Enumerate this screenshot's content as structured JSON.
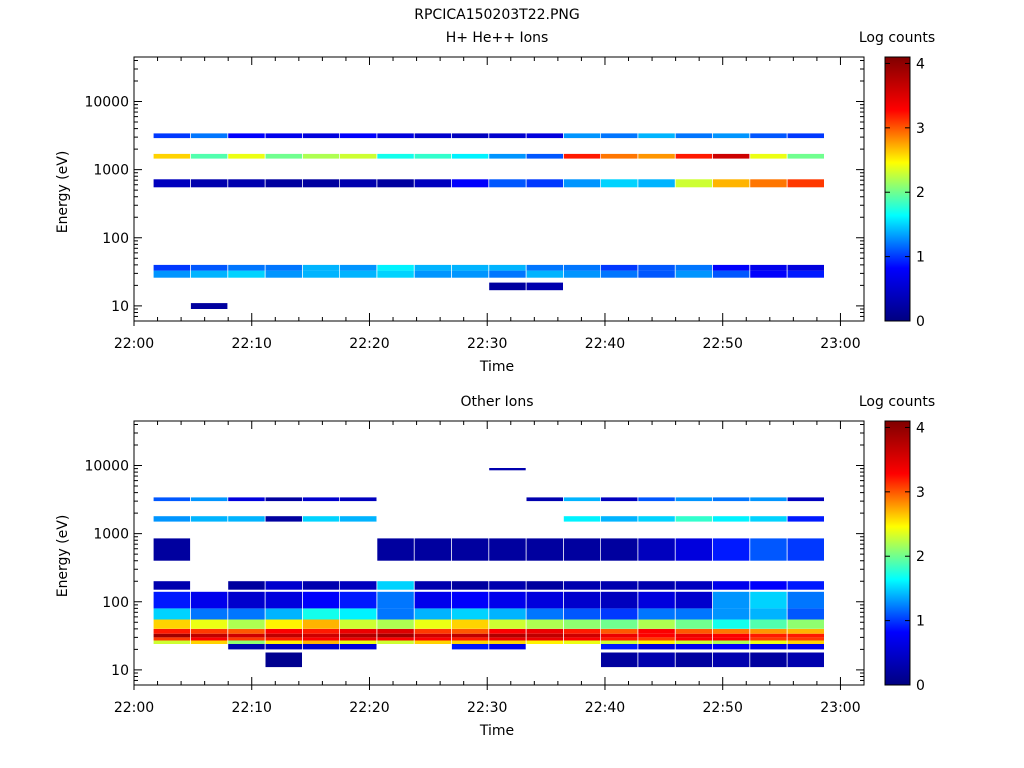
{
  "page_title": "RPCICA150203T22.PNG",
  "chart_data": [
    {
      "type": "heatmap",
      "title": "H+ He++ Ions",
      "xlabel": "Time",
      "ylabel": "Energy (eV)",
      "x_ticks": [
        "22:00",
        "22:10",
        "22:20",
        "22:30",
        "22:40",
        "22:50",
        "23:00"
      ],
      "x_range": [
        "22:00",
        "23:02"
      ],
      "y_scale": "log",
      "y_ticks": [
        "10",
        "100",
        "1000",
        "10000"
      ],
      "y_range": [
        6,
        45000
      ],
      "colorbar": {
        "label": "Log counts",
        "ticks": [
          "0",
          "1",
          "2",
          "3",
          "4"
        ],
        "range": [
          0,
          4.1
        ]
      },
      "colormap": [
        "#000080",
        "#0000ff",
        "#00ffff",
        "#ffff00",
        "#ff0000",
        "#800000"
      ],
      "time_bins_start": [
        "22:01:40",
        "22:04:50",
        "22:08:00",
        "22:11:10",
        "22:14:20",
        "22:17:30",
        "22:20:40",
        "22:23:50",
        "22:27:00",
        "22:30:10",
        "22:33:20",
        "22:36:30",
        "22:39:40",
        "22:42:50",
        "22:46:00",
        "22:49:10",
        "22:52:20",
        "22:55:30"
      ],
      "time_bin_width_min": 3.1,
      "rows": [
        {
          "emin": 26,
          "emax": 33,
          "values": [
            1.3,
            1.4,
            1.5,
            1.3,
            1.4,
            1.4,
            1.5,
            1.3,
            1.3,
            1.2,
            1.4,
            1.3,
            1.2,
            1.1,
            1.3,
            1.1,
            0.8,
            0.9
          ]
        },
        {
          "emin": 33,
          "emax": 40,
          "values": [
            1.0,
            1.1,
            1.2,
            1.2,
            1.4,
            1.3,
            1.6,
            1.4,
            1.4,
            1.4,
            1.2,
            1.2,
            1.0,
            1.1,
            1.2,
            0.8,
            0.7,
            0.6
          ]
        },
        {
          "emin": 1450,
          "emax": 1700,
          "values": [
            2.6,
            1.9,
            2.4,
            2.0,
            2.2,
            2.3,
            1.7,
            1.8,
            1.6,
            1.3,
            1.1,
            3.2,
            2.9,
            2.8,
            3.2,
            3.6,
            2.4,
            2.0
          ]
        },
        {
          "emin": 550,
          "emax": 720,
          "values": [
            0.4,
            0.3,
            0.3,
            0.2,
            0.2,
            0.3,
            0.2,
            0.4,
            0.8,
            1.1,
            1.0,
            1.3,
            1.5,
            1.4,
            2.3,
            2.7,
            2.9,
            3.1
          ]
        },
        {
          "emin": 2900,
          "emax": 3400,
          "values": [
            1.0,
            1.2,
            0.8,
            0.7,
            0.6,
            0.8,
            0.6,
            0.5,
            0.4,
            0.5,
            0.6,
            1.3,
            1.2,
            1.4,
            1.2,
            1.3,
            1.1,
            1.0
          ]
        },
        {
          "emin": 17,
          "emax": 22,
          "values": [
            0,
            0,
            0,
            0,
            0,
            0,
            0,
            0,
            0,
            0.2,
            0.3,
            0,
            0,
            0,
            0,
            0,
            0,
            0
          ]
        },
        {
          "emin": 9,
          "emax": 11,
          "values": [
            0,
            0.2,
            0,
            0,
            0,
            0,
            0,
            0,
            0,
            0,
            0,
            0,
            0,
            0,
            0,
            0,
            0,
            0
          ]
        }
      ]
    },
    {
      "type": "heatmap",
      "title": "Other Ions",
      "xlabel": "Time",
      "ylabel": "Energy (eV)",
      "x_ticks": [
        "22:00",
        "22:10",
        "22:20",
        "22:30",
        "22:40",
        "22:50",
        "23:00"
      ],
      "x_range": [
        "22:00",
        "23:02"
      ],
      "y_scale": "log",
      "y_ticks": [
        "10",
        "100",
        "1000",
        "10000"
      ],
      "y_range": [
        6,
        45000
      ],
      "colorbar": {
        "label": "Log counts",
        "ticks": [
          "0",
          "1",
          "2",
          "3",
          "4"
        ],
        "range": [
          0,
          4.1
        ]
      },
      "colormap": [
        "#000080",
        "#0000ff",
        "#00ffff",
        "#ffff00",
        "#ff0000",
        "#800000"
      ],
      "time_bins_start": [
        "22:01:40",
        "22:04:50",
        "22:08:00",
        "22:11:10",
        "22:14:20",
        "22:17:30",
        "22:20:40",
        "22:23:50",
        "22:27:00",
        "22:30:10",
        "22:33:20",
        "22:36:30",
        "22:39:40",
        "22:42:50",
        "22:46:00",
        "22:49:10",
        "22:52:20",
        "22:55:30"
      ],
      "time_bin_width_min": 3.1,
      "rows": [
        {
          "emin": 30,
          "emax": 34,
          "values": [
            3.9,
            3.7,
            3.6,
            3.7,
            3.6,
            3.8,
            3.9,
            3.6,
            3.7,
            3.8,
            3.7,
            3.6,
            3.4,
            3.3,
            3.4,
            3.3,
            3.2,
            3.2
          ]
        },
        {
          "emin": 34,
          "emax": 40,
          "values": [
            3.2,
            3.1,
            3.0,
            3.3,
            3.2,
            3.4,
            3.5,
            3.1,
            3.0,
            3.3,
            3.4,
            3.2,
            3.0,
            3.3,
            3.0,
            2.9,
            2.8,
            2.7
          ]
        },
        {
          "emin": 27,
          "emax": 30,
          "values": [
            3.1,
            3.3,
            3.1,
            3.2,
            3.3,
            3.4,
            3.3,
            3.3,
            3.2,
            3.4,
            3.4,
            3.3,
            3.2,
            3.1,
            3.3,
            3.3,
            3.1,
            3.1
          ]
        },
        {
          "emin": 24,
          "emax": 27,
          "values": [
            2.3,
            2.6,
            2.1,
            2.5,
            2.7,
            2.4,
            2.3,
            2.6,
            2.6,
            2.6,
            2.5,
            2.4,
            2.3,
            2.5,
            2.3,
            2.2,
            2.4,
            2.6
          ]
        },
        {
          "emin": 20,
          "emax": 24,
          "values": [
            0,
            0,
            0.3,
            0.4,
            0.5,
            0.6,
            0,
            0,
            0.9,
            0.7,
            0,
            0,
            0.9,
            0.6,
            0.7,
            0.8,
            0.7,
            0.7
          ]
        },
        {
          "emin": 40,
          "emax": 55,
          "values": [
            2.6,
            2.4,
            2.2,
            2.5,
            2.7,
            2.3,
            2.2,
            2.4,
            2.6,
            2.3,
            2.2,
            2.1,
            2.0,
            2.2,
            2.0,
            1.7,
            1.9,
            2.1
          ]
        },
        {
          "emin": 55,
          "emax": 80,
          "values": [
            1.5,
            1.2,
            1.2,
            1.4,
            1.7,
            1.6,
            1.2,
            1.4,
            1.5,
            1.4,
            1.2,
            1.1,
            1.0,
            1.2,
            1.2,
            1.3,
            1.4,
            1.1
          ]
        },
        {
          "emin": 80,
          "emax": 140,
          "values": [
            0.9,
            0.7,
            0.5,
            0.6,
            0.8,
            0.9,
            1.2,
            0.7,
            0.8,
            0.7,
            0.6,
            0.5,
            0.4,
            0.6,
            0.5,
            1.3,
            1.5,
            1.2
          ]
        },
        {
          "emin": 150,
          "emax": 200,
          "values": [
            0.3,
            0,
            0.2,
            0.5,
            0.3,
            0.4,
            1.5,
            0.3,
            0.2,
            0.3,
            0.2,
            0.3,
            0.3,
            0.3,
            0.4,
            0.7,
            0.8,
            0.9
          ]
        },
        {
          "emin": 400,
          "emax": 850,
          "values": [
            0.2,
            0,
            0,
            0,
            0,
            0,
            0.2,
            0.2,
            0.2,
            0.2,
            0.2,
            0.2,
            0.2,
            0.4,
            0.6,
            0.9,
            1.1,
            1.0
          ]
        },
        {
          "emin": 1500,
          "emax": 1800,
          "values": [
            1.3,
            1.4,
            1.4,
            0.2,
            1.5,
            1.4,
            0,
            0,
            0,
            0,
            0,
            1.6,
            1.4,
            1.5,
            1.8,
            1.6,
            1.5,
            0.9
          ]
        },
        {
          "emin": 3000,
          "emax": 3400,
          "values": [
            1.1,
            1.3,
            0.6,
            0.2,
            0.5,
            0.4,
            0,
            0,
            0,
            0,
            0.3,
            1.4,
            0.4,
            1.1,
            1.3,
            1.2,
            1.3,
            0.4
          ]
        },
        {
          "emin": 11,
          "emax": 18,
          "values": [
            0,
            0,
            0,
            0.1,
            0,
            0,
            0,
            0,
            0,
            0,
            0,
            0,
            0.2,
            0.3,
            0.2,
            0.3,
            0.2,
            0.3
          ]
        },
        {
          "emin": 8500,
          "emax": 9200,
          "values": [
            0,
            0,
            0,
            0,
            0,
            0,
            0,
            0,
            0,
            0.3,
            0,
            0,
            0,
            0,
            0,
            0,
            0,
            0
          ]
        }
      ]
    }
  ]
}
